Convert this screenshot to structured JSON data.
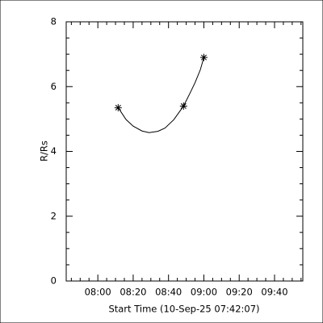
{
  "chart_data": {
    "type": "scatter",
    "xlabel": "Start Time (10-Sep-25 07:42:07)",
    "ylabel": "R/Rs",
    "xlim": [
      462.1,
      596
    ],
    "xticks": [
      {
        "value": 480,
        "label": "08:00"
      },
      {
        "value": 500,
        "label": "08:20"
      },
      {
        "value": 520,
        "label": "08:40"
      },
      {
        "value": 540,
        "label": "09:00"
      },
      {
        "value": 560,
        "label": "09:20"
      },
      {
        "value": 580,
        "label": "09:40"
      }
    ],
    "ylim": [
      0,
      8
    ],
    "yticks": [
      0,
      2,
      4,
      6,
      8
    ],
    "color": "#000000",
    "series": [
      {
        "x": [
          491.5,
          528.5,
          540
        ],
        "values": [
          5.35,
          5.4,
          6.9
        ],
        "marker": "asterisk"
      },
      {
        "x": [
          491.5,
          496,
          500,
          505,
          509,
          514,
          518,
          523,
          528.5,
          532,
          535,
          538,
          540
        ],
        "values": [
          5.35,
          4.98,
          4.78,
          4.63,
          4.58,
          4.62,
          4.72,
          4.98,
          5.4,
          5.78,
          6.12,
          6.52,
          6.9
        ],
        "marker": "none"
      }
    ]
  }
}
